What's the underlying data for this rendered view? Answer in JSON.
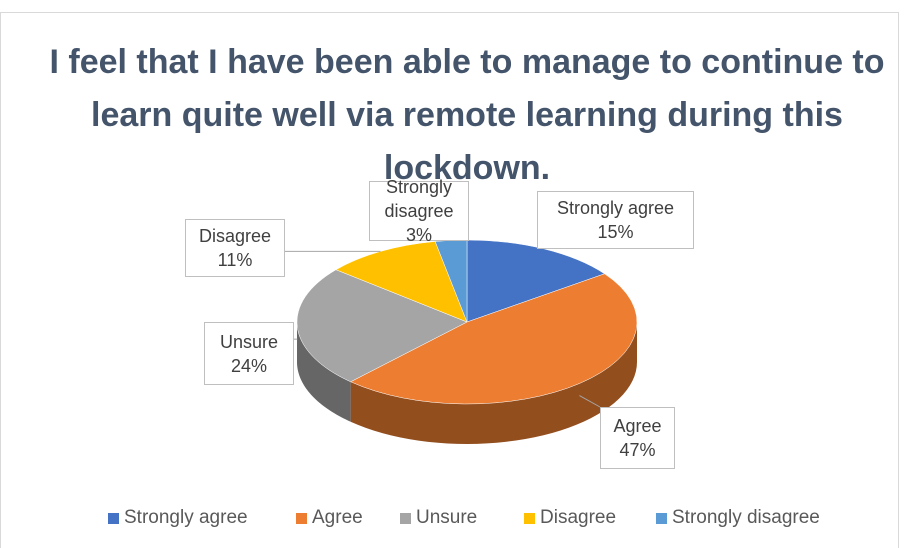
{
  "chart_data": {
    "type": "pie",
    "title": "I feel that I have been able to manage to continue to learn quite well via remote learning during this lockdown.",
    "categories": [
      "Strongly agree",
      "Agree",
      "Unsure",
      "Disagree",
      "Strongly disagree"
    ],
    "values": [
      15,
      47,
      24,
      11,
      3
    ],
    "value_labels": [
      "15%",
      "47%",
      "24%",
      "11%",
      "3%"
    ],
    "colors": [
      "#4472c4",
      "#ed7d31",
      "#a5a5a5",
      "#ffc000",
      "#5b9bd5"
    ],
    "legend": "bottom"
  }
}
